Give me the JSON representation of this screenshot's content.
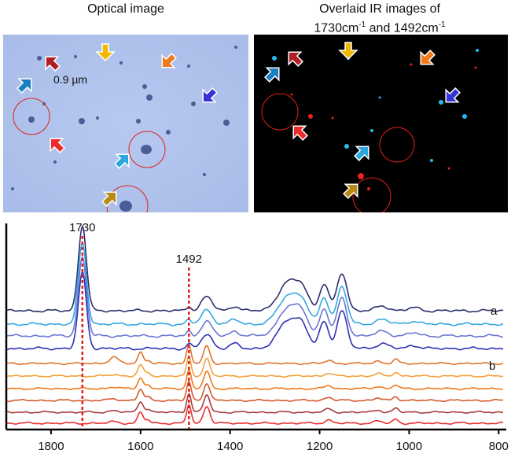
{
  "titles": {
    "optical": "Optical image",
    "ir_line1": "Overlaid IR images of",
    "ir_part1": "1730cm",
    "ir_exp1": "-1",
    "ir_part2": " and 1492cm",
    "ir_exp2": "-1"
  },
  "scale_label": "0.9 µm",
  "arrow_colors": [
    "#1a7fc0",
    "#b01e24",
    "#f2b800",
    "#f07a1e",
    "#3434d6",
    "#ee2b2b",
    "#2ba7e0",
    "#b98a14"
  ],
  "chart_data": {
    "type": "line",
    "xlim": [
      1900,
      790
    ],
    "xticks": [
      1800,
      1600,
      1400,
      1200,
      1000,
      800
    ],
    "reference_lines": [
      {
        "x": 1730,
        "label": "1730",
        "color": "#e0201c"
      },
      {
        "x": 1492,
        "label": "1492",
        "color": "#e0201c"
      }
    ],
    "series": [
      {
        "name": "a",
        "color": "#2b2e6e",
        "family": "ester"
      },
      {
        "color": "#35a8e0",
        "family": "ester"
      },
      {
        "color": "#6a78d0",
        "family": "ester"
      },
      {
        "name": "b",
        "color": "#2e32b4",
        "family": "ester"
      },
      {
        "color": "#e0742a",
        "family": "aromatic"
      },
      {
        "color": "#f2a13a",
        "family": "aromatic"
      },
      {
        "color": "#ee7a1e",
        "family": "aromatic"
      },
      {
        "color": "#d45a30",
        "family": "aromatic"
      },
      {
        "color": "#a83c3c",
        "family": "aromatic"
      },
      {
        "color": "#e83030",
        "family": "aromatic"
      }
    ]
  }
}
